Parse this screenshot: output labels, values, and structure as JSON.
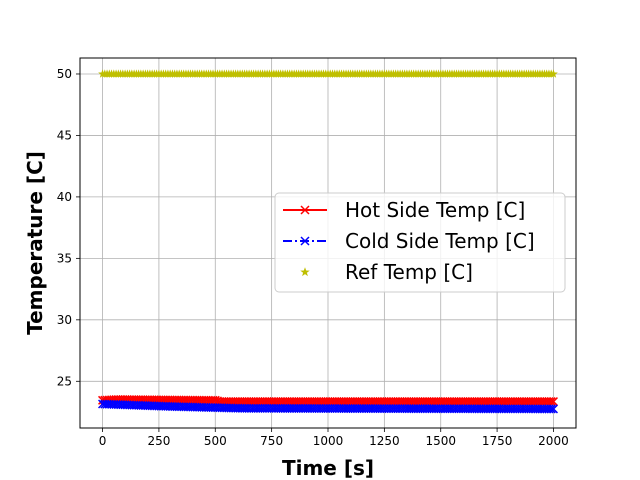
{
  "chart_data": {
    "type": "line",
    "title": "",
    "xlabel": "Time [s]",
    "ylabel": "Temperature [C]",
    "xlim": [
      -100,
      2100
    ],
    "ylim": [
      21.2,
      51.3
    ],
    "xticks": [
      0,
      250,
      500,
      750,
      1000,
      1250,
      1500,
      1750,
      2000
    ],
    "yticks": [
      25,
      30,
      35,
      40,
      45,
      50
    ],
    "grid": true,
    "legend_position": "center-right",
    "x_start": 0,
    "x_end": 2000,
    "x_step": 10,
    "series": [
      {
        "name": "Hot Side Temp [C]",
        "color": "#ff0000",
        "marker": "x",
        "linestyle": "solid",
        "profile": [
          [
            0,
            23.45
          ],
          [
            60,
            23.52
          ],
          [
            500,
            23.45
          ],
          [
            520,
            23.35
          ],
          [
            2000,
            23.35
          ]
        ]
      },
      {
        "name": "Cold Side Temp [C]",
        "color": "#0000ff",
        "marker": "x",
        "linestyle": "dashdot",
        "profile": [
          [
            0,
            23.15
          ],
          [
            300,
            22.95
          ],
          [
            620,
            22.8
          ],
          [
            2000,
            22.75
          ]
        ]
      },
      {
        "name": "Ref Temp [C]",
        "color": "#bfbf00",
        "marker": "*",
        "linestyle": "none",
        "profile": [
          [
            0,
            50.0
          ],
          [
            2000,
            50.0
          ]
        ]
      }
    ]
  }
}
